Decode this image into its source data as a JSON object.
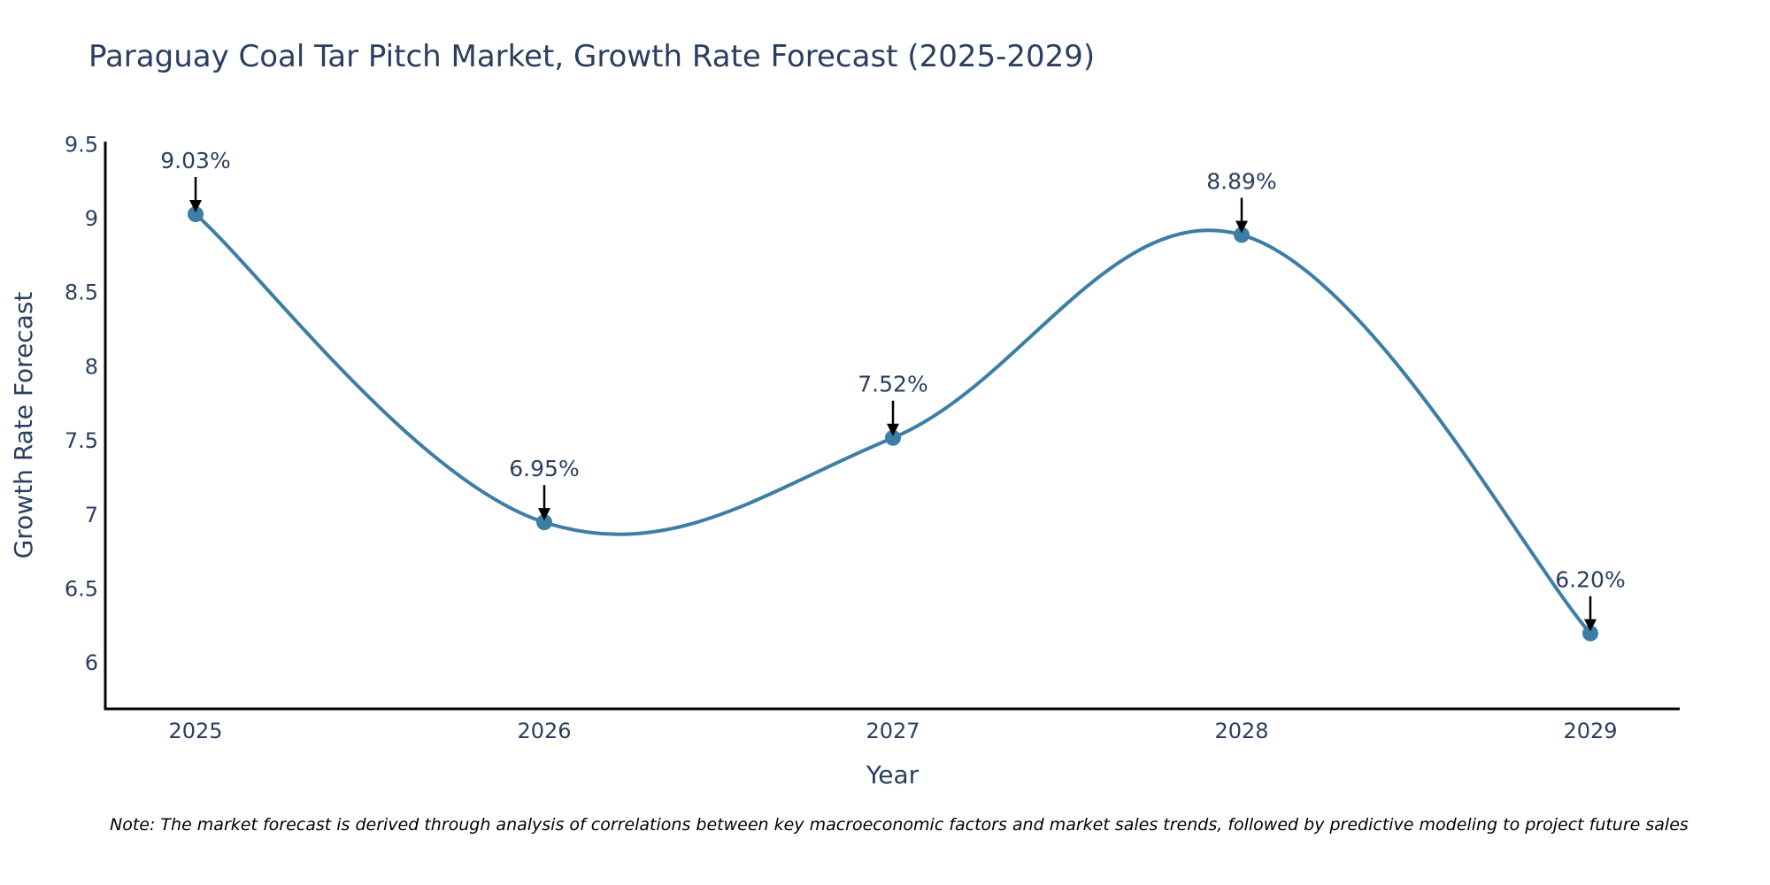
{
  "chart_data": {
    "type": "line",
    "title": "Paraguay Coal Tar Pitch Market, Growth Rate Forecast (2025-2029)",
    "xlabel": "Year",
    "ylabel": "Growth Rate Forecast",
    "categories": [
      "2025",
      "2026",
      "2027",
      "2028",
      "2029"
    ],
    "values": [
      9.03,
      6.95,
      7.52,
      8.89,
      6.2
    ],
    "data_labels": [
      "9.03%",
      "6.95%",
      "7.52%",
      "8.89%",
      "6.20%"
    ],
    "yticks": [
      6,
      6.5,
      7,
      7.5,
      8,
      8.5,
      9,
      9.5
    ],
    "ytick_labels": [
      "6",
      "6.5",
      "7",
      "7.5",
      "8",
      "8.5",
      "9",
      "9.5"
    ],
    "ylim": [
      5.69,
      9.52
    ],
    "line_shape": "spline",
    "grid": false,
    "colors": {
      "line": "#3d7ea6",
      "marker": "#3d7ea6",
      "text": "#2a3f5f",
      "axis": "#000000",
      "arrow": "#000000"
    }
  },
  "note": "Note: The market forecast is derived through analysis of correlations between key macroeconomic factors and market sales trends, followed by predictive modeling to project future sales"
}
